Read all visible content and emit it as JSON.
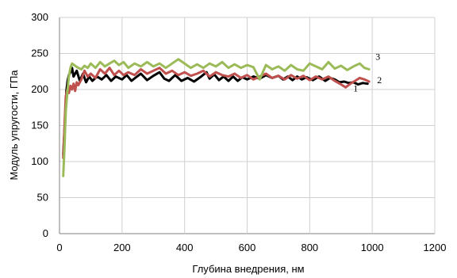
{
  "chart_data": {
    "type": "line",
    "xlabel": "Глубина внедрения, нм",
    "ylabel": "Модуль упругости, ГПа",
    "xlim": [
      0,
      1200
    ],
    "ylim": [
      0,
      300
    ],
    "xticks": [
      0,
      200,
      400,
      600,
      800,
      1000,
      1200
    ],
    "yticks": [
      0,
      50,
      100,
      150,
      200,
      250,
      300
    ],
    "grid": true,
    "legend": "inline labels at line ends",
    "series": [
      {
        "name": "1",
        "color": "#000000",
        "points": [
          [
            12,
            110
          ],
          [
            18,
            160
          ],
          [
            22,
            198
          ],
          [
            26,
            212
          ],
          [
            30,
            220
          ],
          [
            35,
            224
          ],
          [
            40,
            230
          ],
          [
            45,
            218
          ],
          [
            55,
            226
          ],
          [
            65,
            212
          ],
          [
            75,
            222
          ],
          [
            85,
            210
          ],
          [
            95,
            218
          ],
          [
            105,
            212
          ],
          [
            120,
            218
          ],
          [
            135,
            214
          ],
          [
            150,
            220
          ],
          [
            165,
            212
          ],
          [
            180,
            218
          ],
          [
            200,
            214
          ],
          [
            215,
            220
          ],
          [
            230,
            212
          ],
          [
            245,
            217
          ],
          [
            260,
            222
          ],
          [
            280,
            213
          ],
          [
            300,
            219
          ],
          [
            320,
            224
          ],
          [
            335,
            215
          ],
          [
            350,
            212
          ],
          [
            370,
            220
          ],
          [
            390,
            212
          ],
          [
            410,
            216
          ],
          [
            430,
            211
          ],
          [
            450,
            217
          ],
          [
            470,
            224
          ],
          [
            480,
            215
          ],
          [
            495,
            221
          ],
          [
            510,
            213
          ],
          [
            525,
            218
          ],
          [
            540,
            212
          ],
          [
            555,
            218
          ],
          [
            570,
            212
          ],
          [
            585,
            217
          ],
          [
            600,
            214
          ],
          [
            620,
            218
          ],
          [
            640,
            215
          ],
          [
            660,
            220
          ],
          [
            680,
            216
          ],
          [
            700,
            219
          ],
          [
            715,
            214
          ],
          [
            730,
            218
          ],
          [
            745,
            213
          ],
          [
            760,
            218
          ],
          [
            775,
            214
          ],
          [
            790,
            217
          ],
          [
            810,
            213
          ],
          [
            830,
            218
          ],
          [
            850,
            212
          ],
          [
            865,
            216
          ],
          [
            880,
            214
          ],
          [
            895,
            210
          ],
          [
            910,
            211
          ],
          [
            925,
            209
          ],
          [
            940,
            210
          ],
          [
            955,
            207
          ],
          [
            970,
            209
          ],
          [
            985,
            208
          ]
        ]
      },
      {
        "name": "2",
        "color": "#c0504d",
        "points": [
          [
            12,
            105
          ],
          [
            17,
            160
          ],
          [
            20,
            190
          ],
          [
            25,
            200
          ],
          [
            30,
            195
          ],
          [
            35,
            205
          ],
          [
            40,
            200
          ],
          [
            45,
            208
          ],
          [
            50,
            198
          ],
          [
            55,
            210
          ],
          [
            60,
            206
          ],
          [
            70,
            214
          ],
          [
            80,
            226
          ],
          [
            90,
            218
          ],
          [
            100,
            222
          ],
          [
            115,
            216
          ],
          [
            130,
            228
          ],
          [
            145,
            222
          ],
          [
            160,
            230
          ],
          [
            175,
            220
          ],
          [
            190,
            226
          ],
          [
            205,
            220
          ],
          [
            220,
            224
          ],
          [
            240,
            220
          ],
          [
            260,
            228
          ],
          [
            280,
            222
          ],
          [
            300,
            226
          ],
          [
            320,
            230
          ],
          [
            340,
            222
          ],
          [
            360,
            226
          ],
          [
            380,
            220
          ],
          [
            400,
            224
          ],
          [
            420,
            219
          ],
          [
            440,
            222
          ],
          [
            460,
            226
          ],
          [
            480,
            218
          ],
          [
            500,
            224
          ],
          [
            520,
            220
          ],
          [
            540,
            218
          ],
          [
            560,
            222
          ],
          [
            580,
            216
          ],
          [
            600,
            220
          ],
          [
            620,
            214
          ],
          [
            640,
            218
          ],
          [
            660,
            222
          ],
          [
            680,
            216
          ],
          [
            700,
            219
          ],
          [
            720,
            214
          ],
          [
            740,
            220
          ],
          [
            760,
            215
          ],
          [
            780,
            219
          ],
          [
            800,
            213
          ],
          [
            820,
            218
          ],
          [
            840,
            214
          ],
          [
            860,
            218
          ],
          [
            880,
            212
          ],
          [
            900,
            207
          ],
          [
            915,
            203
          ],
          [
            930,
            208
          ],
          [
            945,
            212
          ],
          [
            960,
            216
          ],
          [
            975,
            214
          ],
          [
            990,
            211
          ]
        ]
      },
      {
        "name": "3",
        "color": "#9bbb59",
        "points": [
          [
            12,
            80
          ],
          [
            16,
            120
          ],
          [
            20,
            170
          ],
          [
            25,
            196
          ],
          [
            30,
            218
          ],
          [
            35,
            230
          ],
          [
            40,
            236
          ],
          [
            50,
            233
          ],
          [
            60,
            230
          ],
          [
            70,
            228
          ],
          [
            80,
            233
          ],
          [
            90,
            230
          ],
          [
            100,
            236
          ],
          [
            115,
            230
          ],
          [
            130,
            238
          ],
          [
            145,
            232
          ],
          [
            160,
            236
          ],
          [
            175,
            240
          ],
          [
            190,
            234
          ],
          [
            205,
            238
          ],
          [
            220,
            230
          ],
          [
            240,
            236
          ],
          [
            260,
            232
          ],
          [
            280,
            238
          ],
          [
            300,
            232
          ],
          [
            320,
            236
          ],
          [
            340,
            230
          ],
          [
            360,
            236
          ],
          [
            380,
            242
          ],
          [
            400,
            236
          ],
          [
            420,
            230
          ],
          [
            440,
            235
          ],
          [
            460,
            230
          ],
          [
            480,
            236
          ],
          [
            500,
            232
          ],
          [
            520,
            238
          ],
          [
            540,
            230
          ],
          [
            560,
            235
          ],
          [
            580,
            230
          ],
          [
            600,
            234
          ],
          [
            620,
            231
          ],
          [
            640,
            214
          ],
          [
            660,
            234
          ],
          [
            680,
            228
          ],
          [
            700,
            232
          ],
          [
            720,
            226
          ],
          [
            740,
            234
          ],
          [
            760,
            228
          ],
          [
            780,
            226
          ],
          [
            800,
            236
          ],
          [
            820,
            232
          ],
          [
            840,
            228
          ],
          [
            860,
            238
          ],
          [
            880,
            229
          ],
          [
            900,
            233
          ],
          [
            920,
            227
          ],
          [
            940,
            232
          ],
          [
            960,
            236
          ],
          [
            975,
            230
          ],
          [
            990,
            228
          ]
        ]
      }
    ]
  }
}
